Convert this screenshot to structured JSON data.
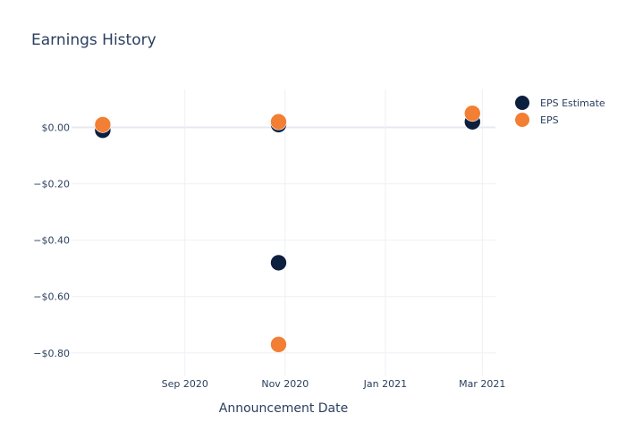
{
  "chart_data": {
    "type": "scatter",
    "title": "Earnings History",
    "xlabel": "Announcement Date",
    "ylabel": "",
    "x_ticks": [
      {
        "date": "2020-09-01",
        "label": "Sep 2020"
      },
      {
        "date": "2020-11-01",
        "label": "Nov 2020"
      },
      {
        "date": "2021-01-01",
        "label": "Jan 2021"
      },
      {
        "date": "2021-03-01",
        "label": "Mar 2021"
      }
    ],
    "y_ticks": [
      {
        "value": 0.0,
        "label": "$0.00"
      },
      {
        "value": -0.2,
        "label": "−$0.20"
      },
      {
        "value": -0.4,
        "label": "−$0.40"
      },
      {
        "value": -0.6,
        "label": "−$0.60"
      },
      {
        "value": -0.8,
        "label": "−$0.80"
      }
    ],
    "xlim": [
      "2020-06-24",
      "2021-03-09"
    ],
    "ylim": [
      -0.88,
      0.135
    ],
    "grid": true,
    "legend_position": "top-right",
    "series": [
      {
        "name": "EPS Estimate",
        "color": "#0d1f3f",
        "points": [
          {
            "x": "2020-07-13",
            "y": -0.01
          },
          {
            "x": "2020-10-28",
            "y": 0.01
          },
          {
            "x": "2020-10-28",
            "y": -0.48
          },
          {
            "x": "2021-02-23",
            "y": 0.02
          }
        ]
      },
      {
        "name": "EPS",
        "color": "#f27f33",
        "points": [
          {
            "x": "2020-07-13",
            "y": 0.01
          },
          {
            "x": "2020-10-28",
            "y": 0.02
          },
          {
            "x": "2020-10-28",
            "y": -0.77
          },
          {
            "x": "2021-02-23",
            "y": 0.05
          }
        ]
      }
    ]
  }
}
